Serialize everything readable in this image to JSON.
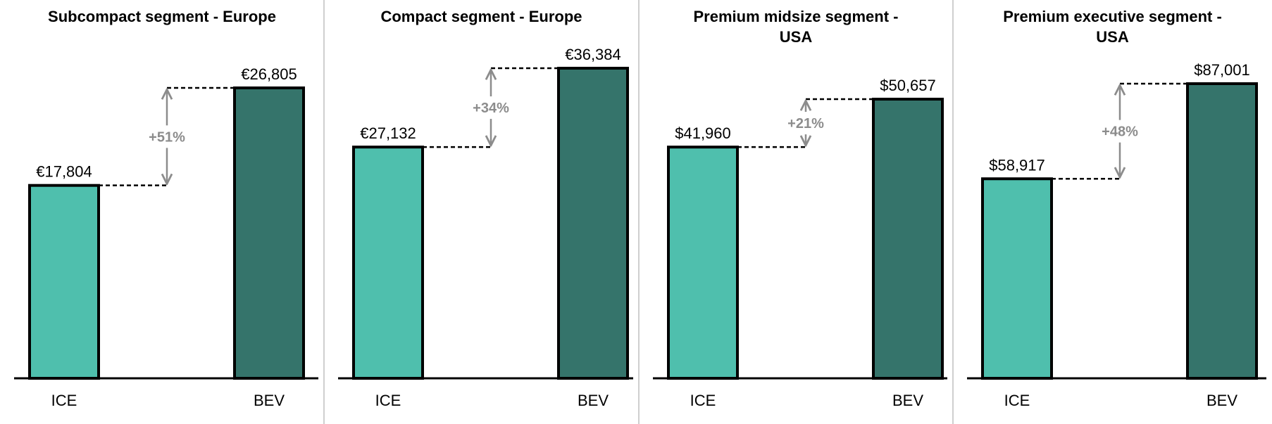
{
  "colors": {
    "ice": "#4fbfad",
    "bev": "#35746b",
    "outline": "#000000",
    "arrow": "#8c8c8c",
    "divider": "#bfbfbf"
  },
  "chart_data": [
    {
      "type": "bar",
      "title_lines": [
        "Subcompact segment - Europe"
      ],
      "categories": [
        "ICE",
        "BEV"
      ],
      "values": [
        17804,
        26805
      ],
      "value_labels": [
        "€17,804",
        "€26,805"
      ],
      "change_label": "+51%",
      "xlabel": "",
      "ylabel": "",
      "grid": false
    },
    {
      "type": "bar",
      "title_lines": [
        "Compact segment - Europe"
      ],
      "categories": [
        "ICE",
        "BEV"
      ],
      "values": [
        27132,
        36384
      ],
      "value_labels": [
        "€27,132",
        "€36,384"
      ],
      "change_label": "+34%",
      "xlabel": "",
      "ylabel": "",
      "grid": false
    },
    {
      "type": "bar",
      "title_lines": [
        "Premium midsize segment -",
        "USA"
      ],
      "categories": [
        "ICE",
        "BEV"
      ],
      "values": [
        41960,
        50657
      ],
      "value_labels": [
        "$41,960",
        "$50,657"
      ],
      "change_label": "+21%",
      "xlabel": "",
      "ylabel": "",
      "grid": false
    },
    {
      "type": "bar",
      "title_lines": [
        "Premium executive segment -",
        "USA"
      ],
      "categories": [
        "ICE",
        "BEV"
      ],
      "values": [
        58917,
        87001
      ],
      "value_labels": [
        "$58,917",
        "$87,001"
      ],
      "change_label": "+48%",
      "xlabel": "",
      "ylabel": "",
      "grid": false
    }
  ]
}
